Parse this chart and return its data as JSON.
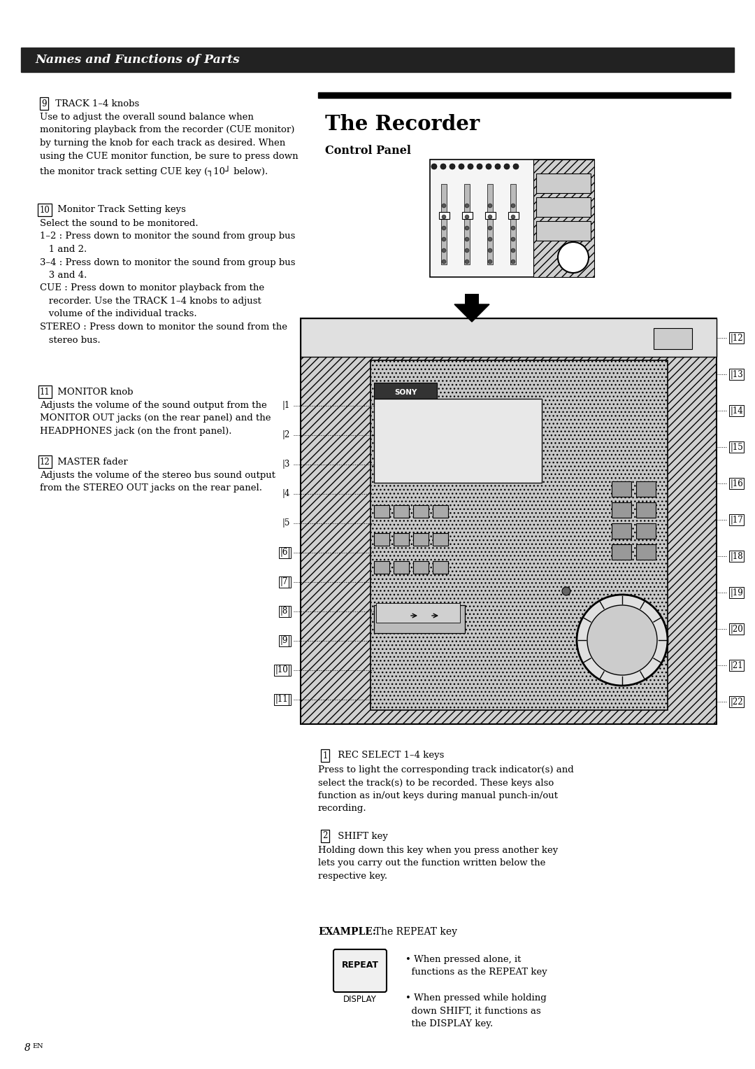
{
  "page_bg": "#ffffff",
  "header_bg": "#222222",
  "header_text": "Names and Functions of Parts",
  "header_text_color": "#ffffff",
  "section_title": "The Recorder",
  "section_subtitle": "Control Panel",
  "page_number": "8EN"
}
